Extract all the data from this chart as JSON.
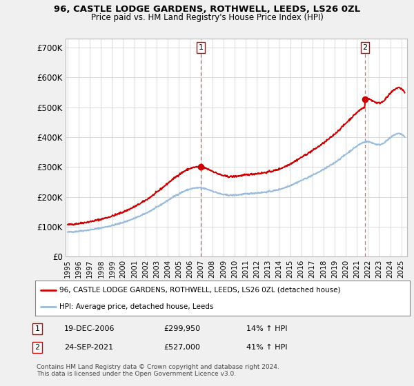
{
  "title_line1": "96, CASTLE LODGE GARDENS, ROTHWELL, LEEDS, LS26 0ZL",
  "title_line2": "Price paid vs. HM Land Registry's House Price Index (HPI)",
  "ylabel_ticks": [
    "£0",
    "£100K",
    "£200K",
    "£300K",
    "£400K",
    "£500K",
    "£600K",
    "£700K"
  ],
  "ytick_vals": [
    0,
    100000,
    200000,
    300000,
    400000,
    500000,
    600000,
    700000
  ],
  "ylim": [
    0,
    730000
  ],
  "xlim_start": 1994.8,
  "xlim_end": 2025.5,
  "background_color": "#f0f0f0",
  "plot_bg_color": "#ffffff",
  "grid_color": "#cccccc",
  "hpi_color": "#99bbdd",
  "price_color": "#cc0000",
  "marker_color": "#cc0000",
  "transaction1": {
    "date_num": 2006.97,
    "price": 299950,
    "label": "1"
  },
  "transaction2": {
    "date_num": 2021.73,
    "price": 527000,
    "label": "2"
  },
  "legend_line1": "96, CASTLE LODGE GARDENS, ROTHWELL, LEEDS, LS26 0ZL (detached house)",
  "legend_line2": "HPI: Average price, detached house, Leeds",
  "table_row1": [
    "1",
    "19-DEC-2006",
    "£299,950",
    "14% ↑ HPI"
  ],
  "table_row2": [
    "2",
    "24-SEP-2021",
    "£527,000",
    "41% ↑ HPI"
  ],
  "footnote": "Contains HM Land Registry data © Crown copyright and database right 2024.\nThis data is licensed under the Open Government Licence v3.0.",
  "xtick_years": [
    1995,
    1996,
    1997,
    1998,
    1999,
    2000,
    2001,
    2002,
    2003,
    2004,
    2005,
    2006,
    2007,
    2008,
    2009,
    2010,
    2011,
    2012,
    2013,
    2014,
    2015,
    2016,
    2017,
    2018,
    2019,
    2020,
    2021,
    2022,
    2023,
    2024,
    2025
  ],
  "hpi_anchors_x": [
    1995,
    1997,
    2000,
    2003,
    2007,
    2009,
    2011,
    2014,
    2016,
    2019,
    2021,
    2022,
    2023,
    2024,
    2025
  ],
  "hpi_anchors_y": [
    82000,
    90000,
    115000,
    165000,
    230000,
    208000,
    210000,
    225000,
    255000,
    315000,
    370000,
    385000,
    375000,
    398000,
    410000
  ]
}
